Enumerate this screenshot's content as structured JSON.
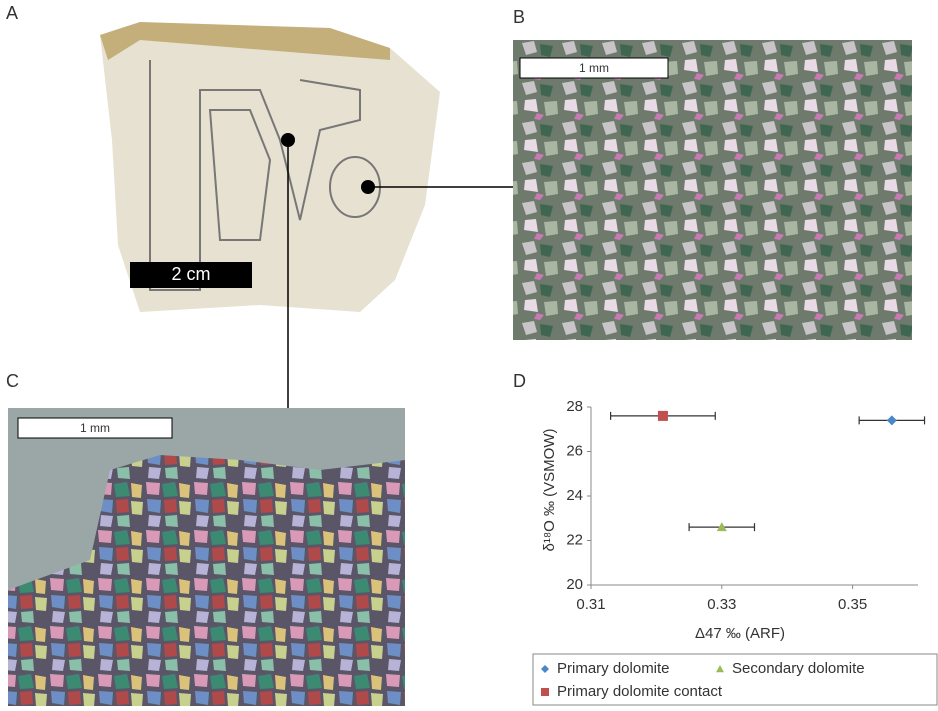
{
  "figure": {
    "panel_labels": [
      "A",
      "B",
      "C",
      "D"
    ],
    "scale_bars": [
      "2 cm",
      "1 mm",
      "1 mm"
    ]
  },
  "chart_data": {
    "type": "scatter",
    "xlabel": "Δ47 ‰ (ARF)",
    "ylabel": "δ¹⁸O ‰ (VSMOW)",
    "xlim": [
      0.31,
      0.36
    ],
    "xticks": [
      0.31,
      0.33,
      0.35
    ],
    "ylim": [
      20,
      28
    ],
    "yticks": [
      20,
      22,
      24,
      26,
      28
    ],
    "grid": false,
    "legend": "bottom",
    "series": [
      {
        "name": "Primary dolomite",
        "color": "#4a86c8",
        "marker": "diamond",
        "x": [
          0.356
        ],
        "values": [
          27.4
        ],
        "xerr": [
          0.005
        ]
      },
      {
        "name": "Secondary dolomite",
        "color": "#9bbb59",
        "marker": "triangle",
        "x": [
          0.33
        ],
        "values": [
          22.6
        ],
        "xerr": [
          0.005
        ]
      },
      {
        "name": "Primary dolomite contact",
        "color": "#c0504d",
        "marker": "square",
        "x": [
          0.321
        ],
        "values": [
          27.6
        ],
        "xerr": [
          0.008
        ]
      }
    ]
  }
}
